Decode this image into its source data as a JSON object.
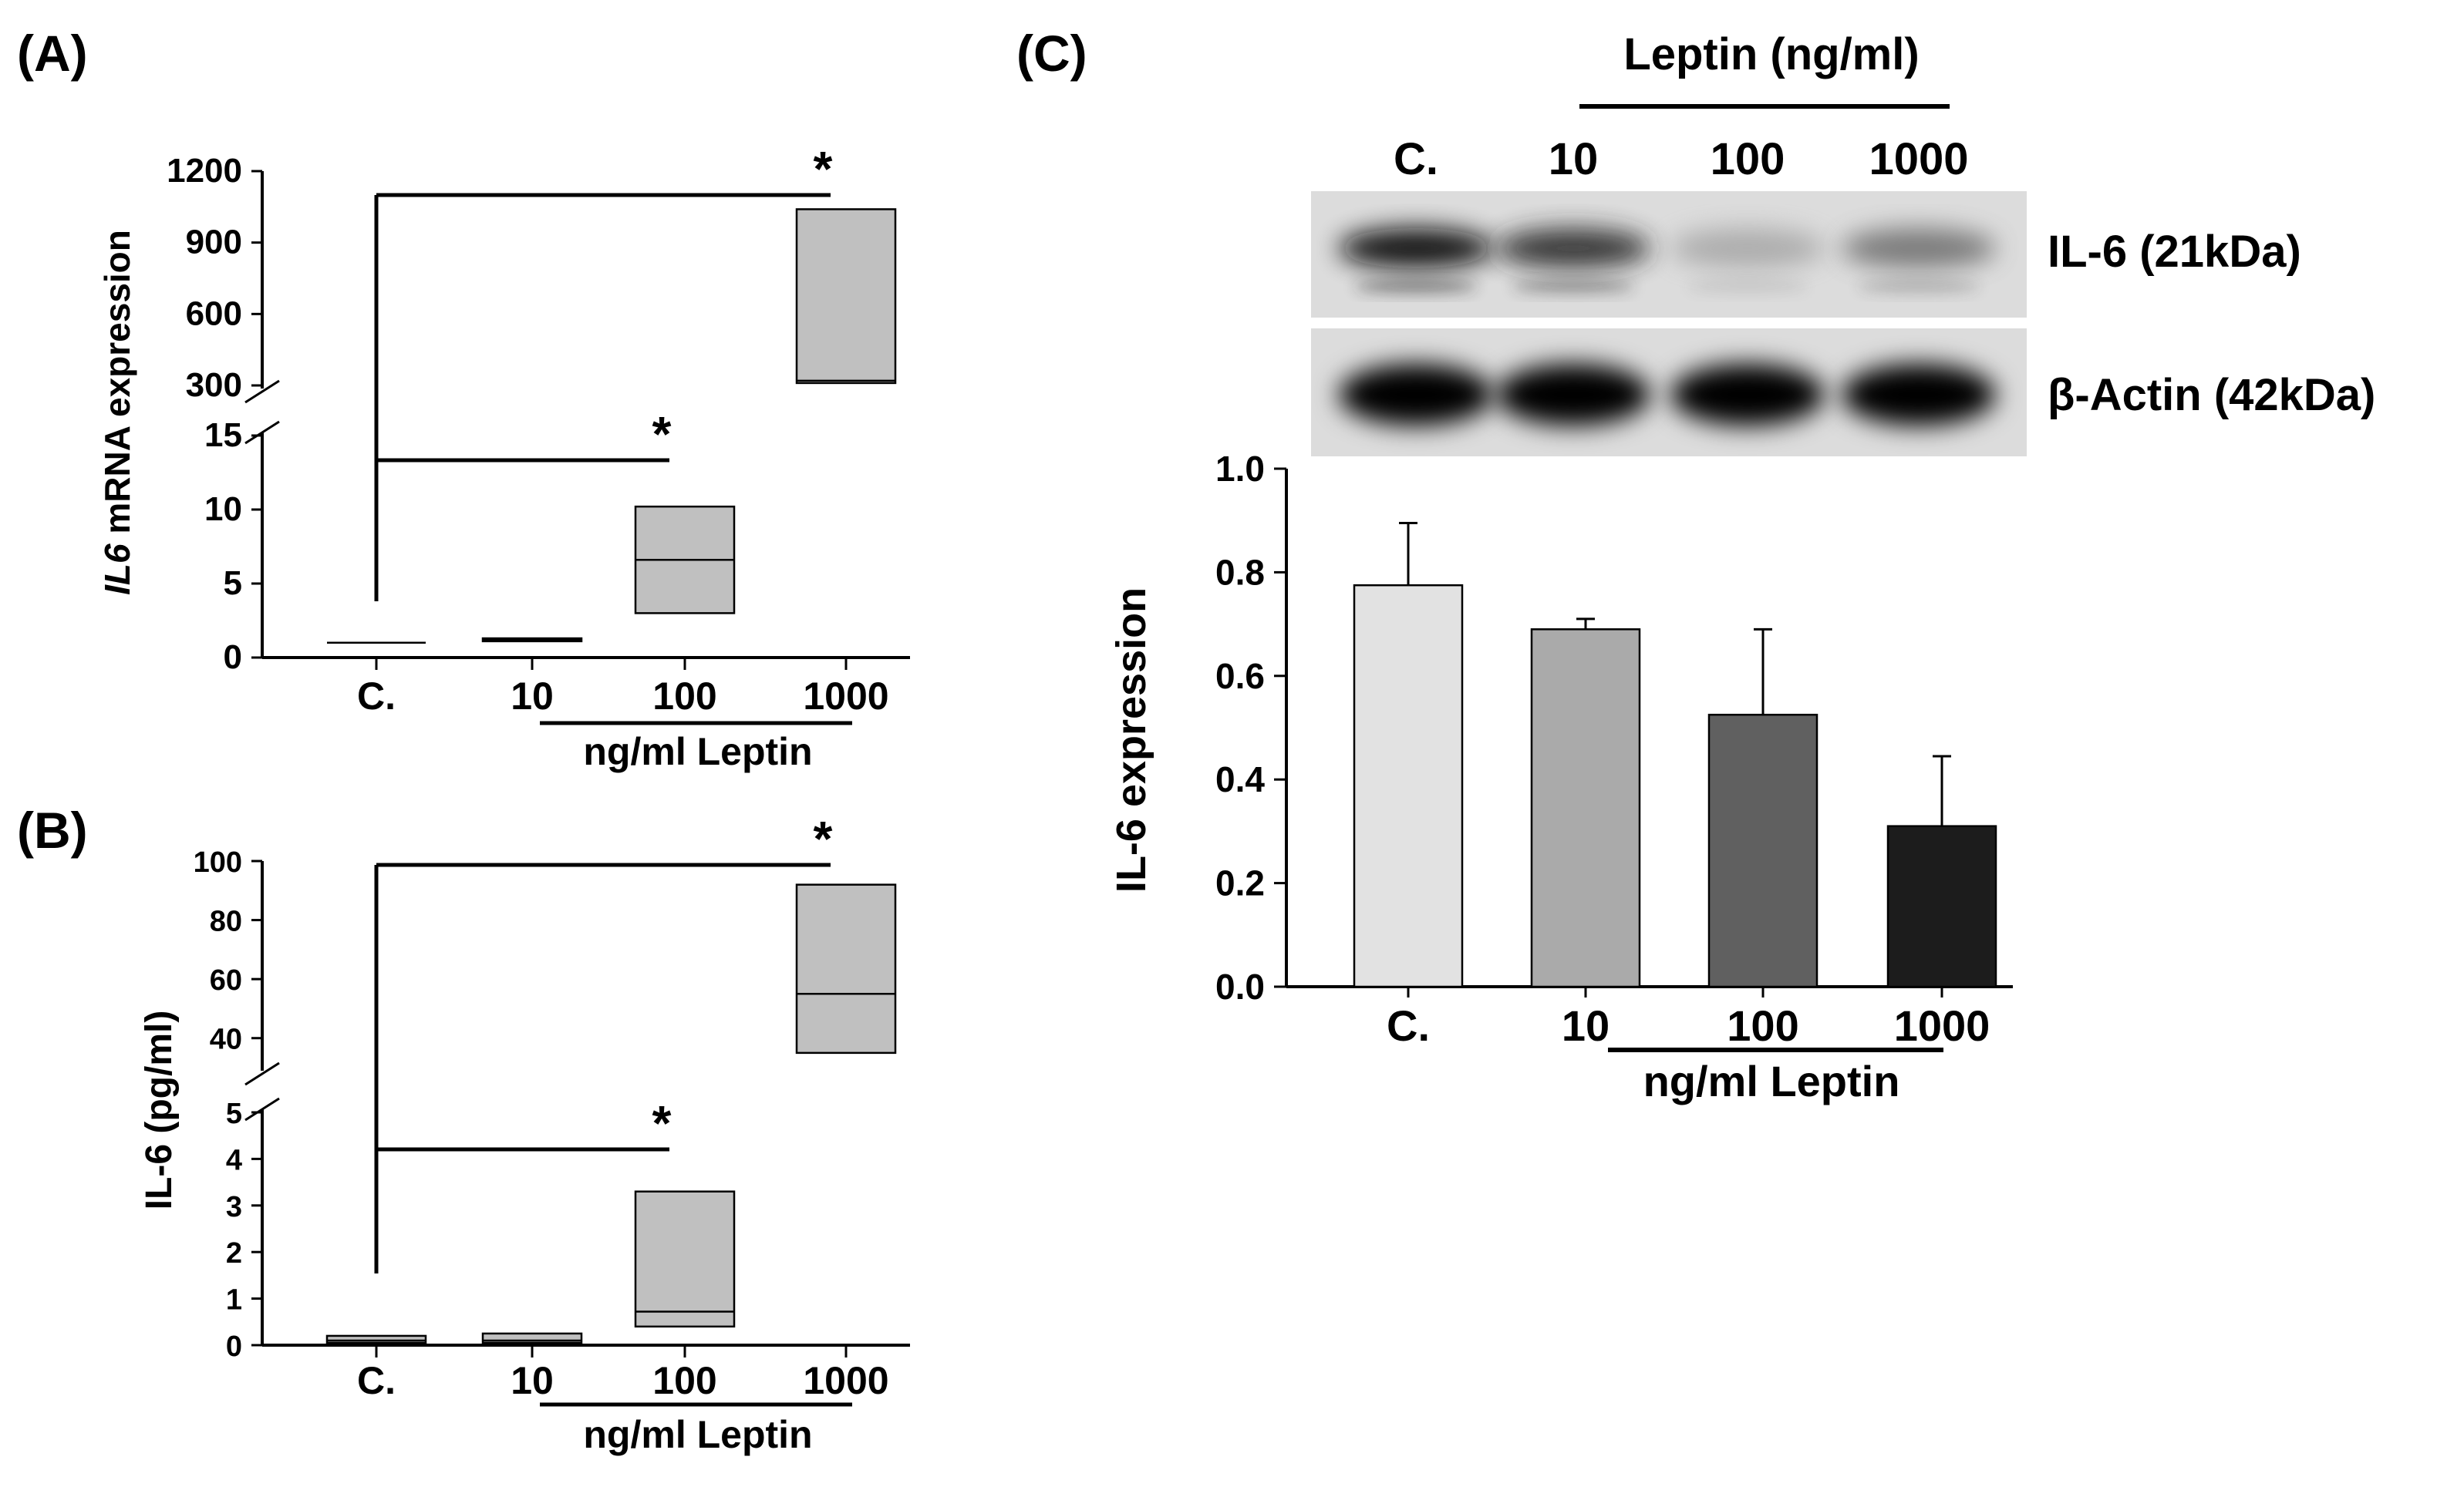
{
  "panels": {
    "a": {
      "label": "(A)"
    },
    "b": {
      "label": "(B)"
    },
    "c": {
      "label": "(C)"
    }
  },
  "chart_data": [
    {
      "id": "A",
      "type": "box",
      "ylabel_italic": "IL6",
      "ylabel_rest": " mRNA expression",
      "categories": [
        "C.",
        "10",
        "100",
        "1000"
      ],
      "group_label": "ng/ml Leptin",
      "broken_axis": true,
      "lower_segment": {
        "ylim": [
          0,
          15
        ],
        "ticks": [
          0,
          5,
          10,
          15
        ]
      },
      "upper_segment": {
        "ylim": [
          300,
          1200
        ],
        "ticks": [
          300,
          600,
          900,
          1200
        ]
      },
      "boxes": [
        {
          "category": "C.",
          "q1": 1,
          "median": 1,
          "q3": 1
        },
        {
          "category": "10",
          "q1": 1.1,
          "median": 1.2,
          "q3": 1.3
        },
        {
          "category": "100",
          "q1": 3,
          "median": 6.6,
          "q3": 10.2
        },
        {
          "category": "1000",
          "q1": 310,
          "median": 320,
          "q3": 1040
        }
      ],
      "significance": [
        {
          "from": "C.",
          "to": "100",
          "label": "*"
        },
        {
          "from": "C.",
          "to": "1000",
          "label": "*"
        }
      ]
    },
    {
      "id": "B",
      "type": "box",
      "ylabel": "IL-6 (pg/ml)",
      "categories": [
        "C.",
        "10",
        "100",
        "1000"
      ],
      "group_label": "ng/ml Leptin",
      "broken_axis": true,
      "lower_segment": {
        "ylim": [
          0,
          5
        ],
        "ticks": [
          0,
          1,
          2,
          3,
          4,
          5
        ]
      },
      "upper_segment": {
        "ylim": [
          30,
          100
        ],
        "ticks": [
          40,
          60,
          80,
          100
        ]
      },
      "boxes": [
        {
          "category": "C.",
          "q1": 0.05,
          "median": 0.1,
          "q3": 0.2
        },
        {
          "category": "10",
          "q1": 0.05,
          "median": 0.1,
          "q3": 0.25
        },
        {
          "category": "100",
          "q1": 0.4,
          "median": 0.72,
          "q3": 3.3
        },
        {
          "category": "1000",
          "q1": 35,
          "median": 55,
          "q3": 92
        }
      ],
      "significance": [
        {
          "from": "C.",
          "to": "100",
          "label": "*"
        },
        {
          "from": "C.",
          "to": "1000",
          "label": "*"
        }
      ]
    },
    {
      "id": "C",
      "type": "bar",
      "ylabel": "IL-6 expression",
      "categories": [
        "C.",
        "10",
        "100",
        "1000"
      ],
      "group_label": "ng/ml Leptin",
      "ylim": [
        0,
        1.0
      ],
      "ticks": [
        "0.0",
        "0.2",
        "0.4",
        "0.6",
        "0.8",
        "1.0"
      ],
      "values": [
        0.775,
        0.69,
        0.525,
        0.31
      ],
      "errors": [
        0.12,
        0.02,
        0.165,
        0.135
      ],
      "bar_colors": [
        "#e2e2e2",
        "#aaaaaa",
        "#606060",
        "#1c1c1c"
      ],
      "blot": {
        "header": "Leptin (ng/ml)",
        "lanes": [
          "C.",
          "10",
          "100",
          "1000"
        ],
        "bands": [
          {
            "label": "IL-6 (21kDa)",
            "intensity": [
              0.95,
              0.85,
              0.45,
              0.65
            ]
          },
          {
            "label": "β-Actin (42kDa)",
            "intensity": [
              1.0,
              1.0,
              1.0,
              1.0
            ]
          }
        ]
      }
    }
  ]
}
